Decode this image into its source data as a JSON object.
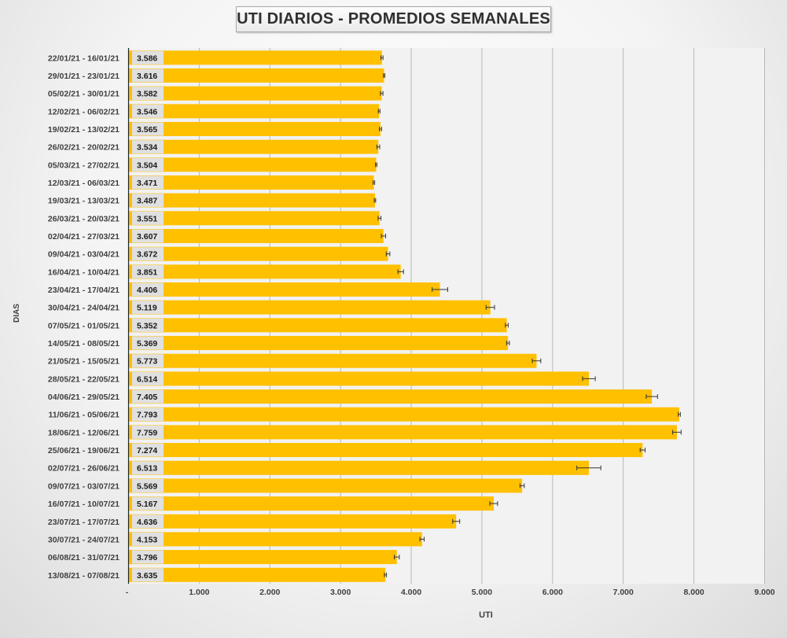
{
  "chart_data": {
    "type": "bar",
    "orientation": "horizontal",
    "title": "UTI DIARIOS - PROMEDIOS SEMANALES",
    "xlabel": "UTI",
    "ylabel": "DIAS",
    "xlim": [
      0,
      9000
    ],
    "x_ticks": [
      0,
      1000,
      2000,
      3000,
      4000,
      5000,
      6000,
      7000,
      8000,
      9000
    ],
    "x_tick_labels": [
      "-",
      "1.000",
      "2.000",
      "3.000",
      "4.000",
      "5.000",
      "6.000",
      "7.000",
      "8.000",
      "9.000"
    ],
    "grid": "vertical",
    "categories": [
      "22/01/21 - 16/01/21",
      "29/01/21 - 23/01/21",
      "05/02/21 - 30/01/21",
      "12/02/21 - 06/02/21",
      "19/02/21 - 13/02/21",
      "26/02/21 - 20/02/21",
      "05/03/21 - 27/02/21",
      "12/03/21 - 06/03/21",
      "19/03/21 - 13/03/21",
      "26/03/21 - 20/03/21",
      "02/04/21 - 27/03/21",
      "09/04/21 - 03/04/21",
      "16/04/21 - 10/04/21",
      "23/04/21 - 17/04/21",
      "30/04/21 - 24/04/21",
      "07/05/21 - 01/05/21",
      "14/05/21 - 08/05/21",
      "21/05/21 - 15/05/21",
      "28/05/21 - 22/05/21",
      "04/06/21 - 29/05/21",
      "11/06/21 - 05/06/21",
      "18/06/21 - 12/06/21",
      "25/06/21 - 19/06/21",
      "02/07/21 - 26/06/21",
      "09/07/21 - 03/07/21",
      "16/07/21 - 10/07/21",
      "23/07/21 - 17/07/21",
      "30/07/21 - 24/07/21",
      "06/08/21 - 31/07/21",
      "13/08/21 - 07/08/21"
    ],
    "values": [
      3586,
      3616,
      3582,
      3546,
      3565,
      3534,
      3504,
      3471,
      3487,
      3551,
      3607,
      3672,
      3851,
      4406,
      5119,
      5352,
      5369,
      5773,
      6514,
      7405,
      7793,
      7759,
      7274,
      6513,
      5569,
      5167,
      4636,
      4153,
      3796,
      3635
    ],
    "value_labels": [
      "3.586",
      "3.616",
      "3.582",
      "3.546",
      "3.565",
      "3.534",
      "3.504",
      "3.471",
      "3.487",
      "3.551",
      "3.607",
      "3.672",
      "3.851",
      "4.406",
      "5.119",
      "5.352",
      "5.369",
      "5.773",
      "6.514",
      "7.405",
      "7.793",
      "7.759",
      "7.274",
      "6.513",
      "5.569",
      "5.167",
      "4.636",
      "4.153",
      "3.796",
      "3.635"
    ],
    "error_bars": [
      15,
      10,
      18,
      12,
      15,
      20,
      10,
      12,
      10,
      20,
      30,
      25,
      40,
      110,
      60,
      20,
      20,
      60,
      90,
      80,
      15,
      60,
      35,
      170,
      30,
      55,
      50,
      30,
      35,
      15
    ],
    "colors": {
      "bar": "#ffc000",
      "plot_background": "#f2f2f2",
      "grid": "#b8b8b8",
      "text": "#404040",
      "label_box": "#e0e0e0"
    }
  }
}
